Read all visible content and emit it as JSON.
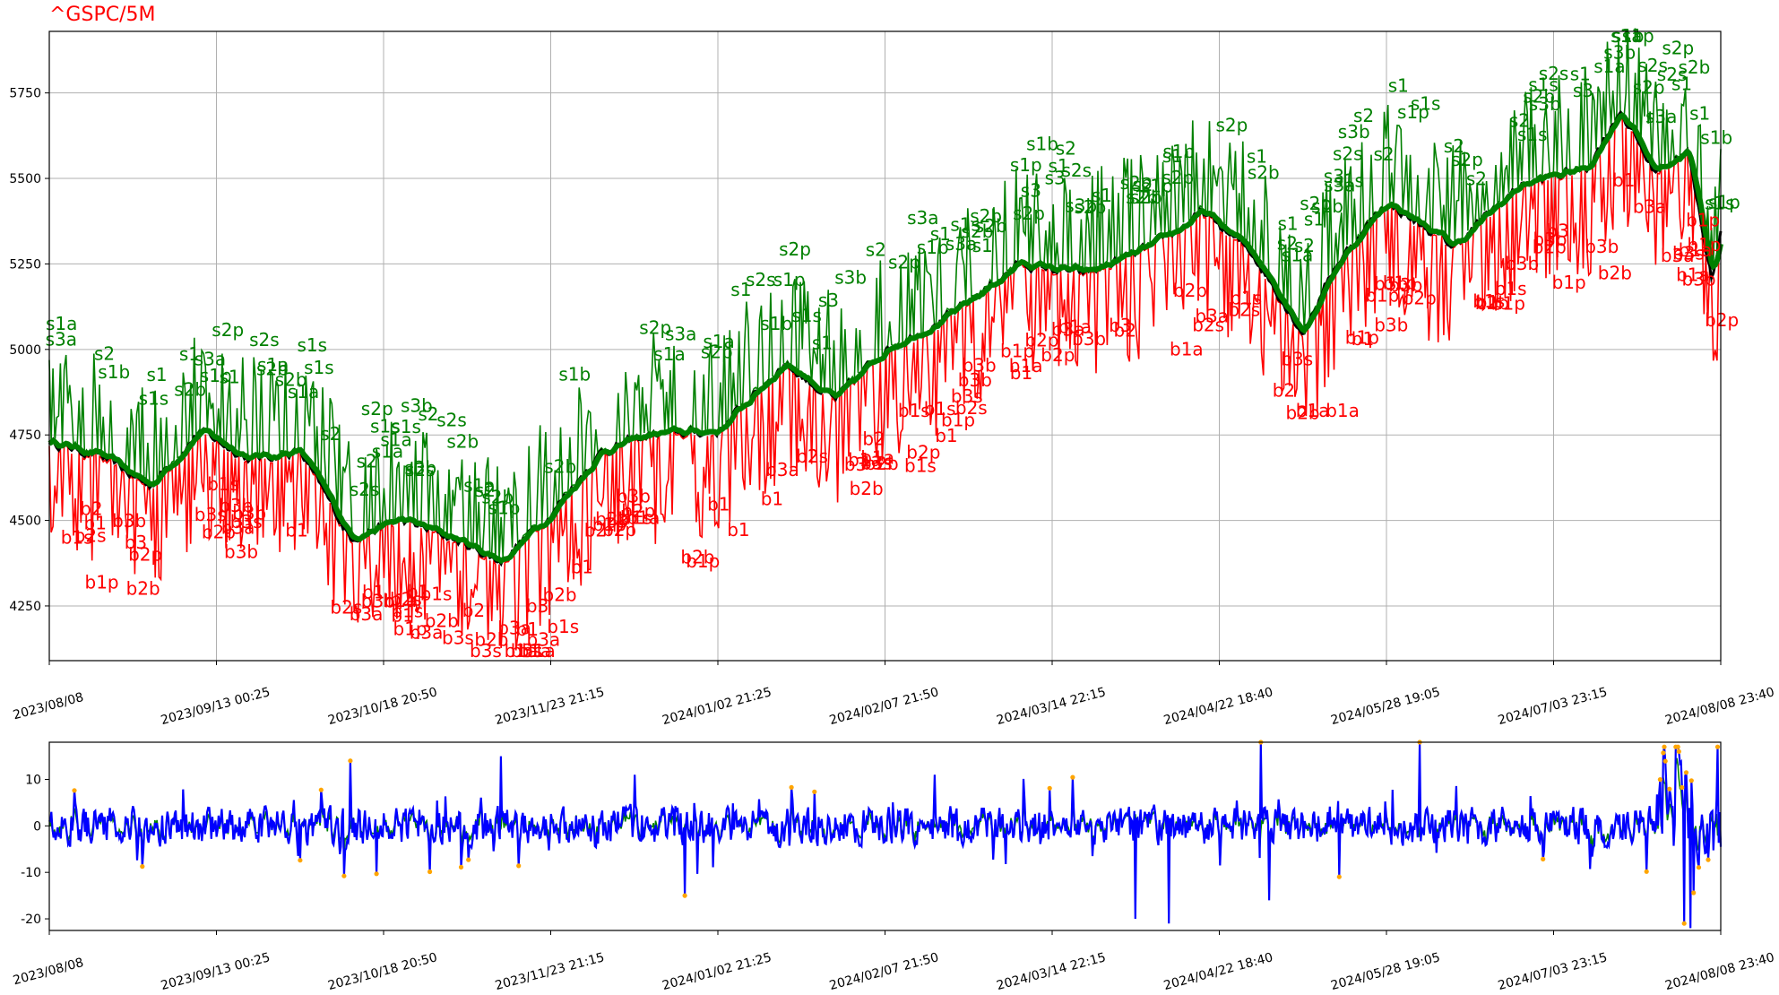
{
  "chart_data": [
    {
      "type": "line",
      "title": "^GSPC/5M",
      "title_color": "#ff0000",
      "grid": true,
      "xlabel": "",
      "ylabel": "",
      "ylim": [
        4090,
        5930
      ],
      "x_ticks": [
        "2023/08/08",
        "2023/09/13 00:25",
        "2023/10/18 20:50",
        "2023/11/23 21:15",
        "2024/01/02 21:25",
        "2024/02/07 21:50",
        "2024/03/14 22:15",
        "2024/04/22 18:40",
        "2024/05/28 19:05",
        "2024/07/03 23:15",
        "2024/08/08 23:40"
      ],
      "y_ticks": [
        4250,
        4500,
        4750,
        5000,
        5250,
        5500,
        5750
      ],
      "price_anchors": {
        "t": [
          0,
          0.03,
          0.06,
          0.09,
          0.12,
          0.15,
          0.18,
          0.21,
          0.24,
          0.27,
          0.3,
          0.33,
          0.36,
          0.4,
          0.44,
          0.47,
          0.5,
          0.54,
          0.58,
          0.62,
          0.66,
          0.69,
          0.72,
          0.75,
          0.77,
          0.8,
          0.84,
          0.88,
          0.92,
          0.94,
          0.96,
          0.98,
          0.995,
          1.0
        ],
        "close": [
          4730,
          4690,
          4600,
          4760,
          4680,
          4700,
          4450,
          4500,
          4450,
          4380,
          4520,
          4700,
          4750,
          4760,
          4960,
          4850,
          5000,
          5100,
          5250,
          5220,
          5300,
          5400,
          5280,
          5050,
          5250,
          5430,
          5300,
          5480,
          5530,
          5700,
          5520,
          5580,
          5200,
          5350
        ]
      },
      "series": [
        {
          "role": "close",
          "color": "#000000"
        },
        {
          "role": "upper",
          "color": "#008000"
        },
        {
          "role": "lower",
          "color": "#ff0000"
        }
      ],
      "sell_labels": [
        "s2",
        "s3b",
        "s1p",
        "s2s",
        "s1",
        "s3a",
        "s1b",
        "s2b",
        "s1s",
        "s3",
        "s1a",
        "s2p"
      ],
      "buy_labels": [
        "b1",
        "b2",
        "b3b",
        "b1p",
        "b2s",
        "b2p",
        "b3a",
        "b1s",
        "b2b",
        "b3",
        "b1a",
        "b3s"
      ],
      "sell_color": "#008000",
      "buy_color": "#ff0000"
    },
    {
      "type": "line",
      "title": "",
      "grid": false,
      "ylim": [
        -22.5,
        18
      ],
      "x_ticks": [
        "2023/08/08",
        "2023/09/13 00:25",
        "2023/10/18 20:50",
        "2023/11/23 21:15",
        "2024/01/02 21:25",
        "2024/02/07 21:50",
        "2024/03/14 22:15",
        "2024/04/22 18:40",
        "2024/05/28 19:05",
        "2024/07/03 23:15",
        "2024/08/08 23:40"
      ],
      "y_ticks": [
        -20,
        -10,
        0,
        10
      ],
      "series": [
        {
          "role": "oscillator",
          "color": "#0000ff"
        },
        {
          "role": "secondary",
          "color": "#008000"
        },
        {
          "role": "extreme-markers",
          "color": "#ffa500"
        }
      ],
      "notable_extremes": [
        {
          "t": 0.18,
          "v": 14
        },
        {
          "t": 0.27,
          "v": 15
        },
        {
          "t": 0.35,
          "v": 11
        },
        {
          "t": 0.38,
          "v": -15
        },
        {
          "t": 0.53,
          "v": 11
        },
        {
          "t": 0.65,
          "v": -20
        },
        {
          "t": 0.67,
          "v": -21
        },
        {
          "t": 0.725,
          "v": 18
        },
        {
          "t": 0.73,
          "v": -16
        },
        {
          "t": 0.82,
          "v": 18
        },
        {
          "t": 0.975,
          "v": 16
        },
        {
          "t": 0.978,
          "v": -21
        },
        {
          "t": 0.982,
          "v": -22
        },
        {
          "t": 0.998,
          "v": 17
        }
      ]
    }
  ]
}
